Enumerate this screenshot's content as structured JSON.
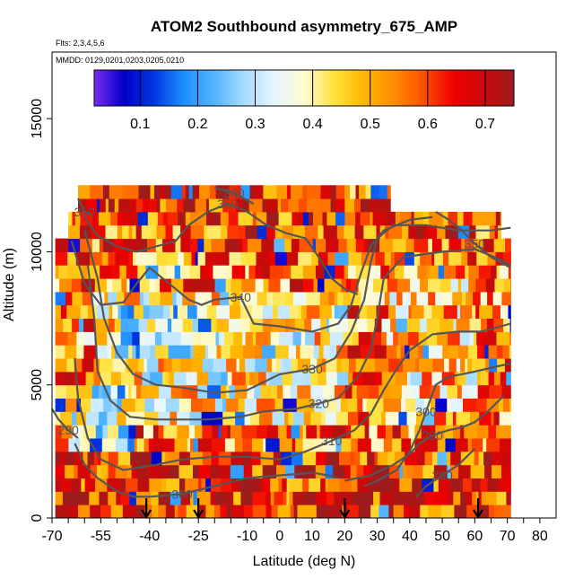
{
  "chart_data": {
    "type": "heatmap",
    "title": "ATOM2 Southbound asymmetry_675_AMP",
    "flights_note": "Flts: 2,3,4,5,6",
    "dates_note": "MMDD: 0129,0201,0203,0205,0210",
    "xlabel": "Latitude (deg N)",
    "ylabel": "Altitude (m)",
    "xlim": [
      -70,
      85
    ],
    "ylim": [
      0,
      17500
    ],
    "x_ticks": [
      -70,
      -55,
      -40,
      -25,
      -10,
      0,
      10,
      20,
      30,
      40,
      50,
      60,
      70,
      80
    ],
    "x_minor_ticks": [
      -65,
      -60,
      -50,
      -45,
      -35,
      -30,
      -20,
      -15,
      -5,
      5,
      15,
      25,
      35,
      45,
      55,
      65,
      75
    ],
    "y_ticks": [
      0,
      5000,
      10000,
      15000
    ],
    "colorbar": {
      "range": [
        0.02,
        0.75
      ],
      "ticks": [
        0.1,
        0.2,
        0.3,
        0.4,
        0.5,
        0.6,
        0.7
      ],
      "colors": [
        "#7b2cf2",
        "#0000c8",
        "#0038e0",
        "#1e90ff",
        "#50b4ff",
        "#a6dcff",
        "#e6f6ff",
        "#fffbd0",
        "#ffe23c",
        "#ffb700",
        "#ff8c00",
        "#ff5000",
        "#ef0000",
        "#c80a0a",
        "#9e1c1c"
      ]
    },
    "data_extent": {
      "altitude_top": 12500,
      "lat_min": -69,
      "lat_max": 71
    },
    "theta_contours": [
      {
        "label": "280",
        "points": [
          [
            42,
            800
          ],
          [
            45,
            1200
          ],
          [
            50,
            1600
          ],
          [
            55,
            2000
          ],
          [
            60,
            2600
          ]
        ]
      },
      {
        "label": "290",
        "points": [
          [
            -70,
            4100
          ],
          [
            -68,
            3700
          ],
          [
            -65,
            3300
          ],
          [
            -62,
            3000
          ]
        ]
      },
      {
        "label": "290",
        "points": [
          [
            20,
            1400
          ],
          [
            28,
            1600
          ],
          [
            35,
            2000
          ],
          [
            40,
            2400
          ],
          [
            43,
            2800
          ],
          [
            47,
            3100
          ],
          [
            52,
            3300
          ],
          [
            56,
            3400
          ],
          [
            60,
            3600
          ],
          [
            64,
            4000
          ],
          [
            69,
            4600
          ]
        ]
      },
      {
        "label": "300",
        "points": [
          [
            -63,
            2800
          ],
          [
            -60,
            2000
          ],
          [
            -56,
            1500
          ],
          [
            -50,
            1000
          ],
          [
            -45,
            800
          ],
          [
            -40,
            800
          ],
          [
            -30,
            900
          ],
          [
            -20,
            1200
          ],
          [
            -10,
            1500
          ],
          [
            0,
            1600
          ],
          [
            10,
            1700
          ],
          [
            15,
            1600
          ],
          [
            18,
            1500
          ]
        ]
      },
      {
        "label": "300",
        "points": [
          [
            26,
            1200
          ],
          [
            30,
            1400
          ],
          [
            36,
            1800
          ],
          [
            40,
            2500
          ],
          [
            43,
            3300
          ],
          [
            45,
            4000
          ],
          [
            48,
            5000
          ],
          [
            52,
            5300
          ],
          [
            60,
            5500
          ],
          [
            67,
            5700
          ],
          [
            71,
            5800
          ]
        ]
      },
      {
        "label": "310",
        "points": [
          [
            -63,
            6000
          ],
          [
            -62,
            4500
          ],
          [
            -59,
            3000
          ],
          [
            -55,
            2200
          ],
          [
            -48,
            1800
          ],
          [
            -38,
            2000
          ],
          [
            -30,
            2200
          ],
          [
            -20,
            2300
          ],
          [
            -10,
            2300
          ],
          [
            0,
            2200
          ],
          [
            8,
            2500
          ],
          [
            16,
            2900
          ],
          [
            23,
            3300
          ],
          [
            28,
            3900
          ],
          [
            32,
            4800
          ],
          [
            36,
            5600
          ],
          [
            40,
            6300
          ],
          [
            47,
            6900
          ],
          [
            55,
            7000
          ],
          [
            62,
            7000
          ],
          [
            68,
            7200
          ],
          [
            71,
            7300
          ]
        ]
      },
      {
        "label": "320",
        "points": [
          [
            -59,
            9500
          ],
          [
            -57,
            7500
          ],
          [
            -56,
            5500
          ],
          [
            -52,
            4400
          ],
          [
            -46,
            3800
          ],
          [
            -38,
            3700
          ],
          [
            -30,
            3700
          ],
          [
            -22,
            3700
          ],
          [
            -12,
            3800
          ],
          [
            -5,
            4000
          ],
          [
            5,
            4100
          ],
          [
            12,
            4300
          ],
          [
            18,
            4500
          ],
          [
            24,
            5300
          ],
          [
            28,
            6300
          ],
          [
            30,
            7500
          ],
          [
            32,
            9000
          ],
          [
            38,
            9800
          ],
          [
            50,
            10000
          ],
          [
            60,
            10100
          ],
          [
            68,
            9700
          ],
          [
            71,
            9500
          ]
        ]
      },
      {
        "label": "330",
        "points": [
          [
            -60,
            10800
          ],
          [
            -56,
            9000
          ],
          [
            -54,
            7500
          ],
          [
            -50,
            6200
          ],
          [
            -45,
            5400
          ],
          [
            -38,
            5000
          ],
          [
            -30,
            4900
          ],
          [
            -20,
            4700
          ],
          [
            -10,
            4800
          ],
          [
            0,
            5400
          ],
          [
            10,
            5600
          ],
          [
            17,
            6000
          ],
          [
            22,
            7000
          ],
          [
            26,
            8200
          ],
          [
            28,
            9600
          ],
          [
            30,
            10500
          ],
          [
            35,
            11000
          ],
          [
            45,
            11000
          ],
          [
            55,
            10800
          ],
          [
            65,
            10800
          ],
          [
            71,
            10900
          ]
        ]
      },
      {
        "label": "340",
        "points": [
          [
            -64,
            10400
          ],
          [
            -62,
            9600
          ],
          [
            -60,
            8800
          ],
          [
            -55,
            8000
          ],
          [
            -48,
            8100
          ],
          [
            -44,
            8800
          ],
          [
            -40,
            9400
          ],
          [
            -32,
            8600
          ],
          [
            -28,
            8200
          ],
          [
            -24,
            8000
          ],
          [
            -20,
            8200
          ],
          [
            -12,
            8300
          ],
          [
            -8,
            7300
          ],
          [
            0,
            7200
          ],
          [
            10,
            7000
          ],
          [
            18,
            7300
          ],
          [
            22,
            8000
          ],
          [
            25,
            9200
          ],
          [
            28,
            10200
          ],
          [
            32,
            10800
          ],
          [
            40,
            11200
          ],
          [
            47,
            11300
          ]
        ]
      },
      {
        "label": "350",
        "points": [
          [
            -60,
            11300
          ],
          [
            -56,
            10600
          ],
          [
            -50,
            10200
          ],
          [
            -44,
            10000
          ],
          [
            -38,
            10200
          ],
          [
            -32,
            10400
          ],
          [
            -28,
            11000
          ],
          [
            -22,
            11500
          ],
          [
            -16,
            11800
          ],
          [
            -10,
            11500
          ],
          [
            -4,
            11000
          ],
          [
            2,
            10700
          ],
          [
            8,
            10500
          ],
          [
            12,
            9800
          ],
          [
            16,
            9000
          ],
          [
            20,
            8600
          ],
          [
            24,
            8400
          ]
        ]
      },
      {
        "label": "350",
        "points": [
          [
            -62,
            12000
          ],
          [
            -60,
            11500
          ],
          [
            -58,
            11400
          ]
        ]
      },
      {
        "label": "350",
        "points": [
          [
            48,
            11500
          ],
          [
            52,
            11200
          ],
          [
            56,
            10800
          ],
          [
            60,
            10300
          ],
          [
            65,
            9800
          ],
          [
            71,
            9400
          ]
        ]
      },
      {
        "label": "360",
        "points": [
          [
            -20,
            12400
          ],
          [
            -14,
            12200
          ],
          [
            -8,
            11800
          ]
        ]
      }
    ],
    "sonde_arrows_lat": [
      -41,
      -25,
      20,
      61
    ]
  }
}
